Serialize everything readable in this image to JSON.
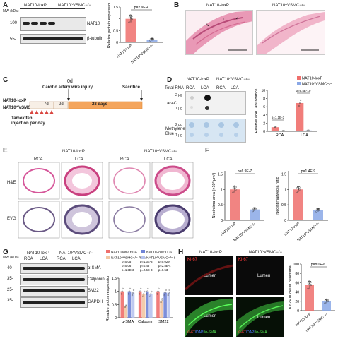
{
  "panels": {
    "A": {
      "label": "A",
      "groups": [
        "NAT10-loxP",
        "NAT10^VSMC−/−"
      ],
      "mw_label": "MW (kDa)",
      "mw": [
        "100-",
        "55-"
      ],
      "bands": [
        "NAT10",
        "β-tubulin"
      ],
      "ylabel": "Relative protein expression",
      "pvalue": "p=2.9E-4",
      "xcats": [
        "NAT10-loxP",
        "NAT10^VSMC−/−"
      ]
    },
    "B": {
      "label": "B",
      "titles": [
        "NAT10-loxP",
        "NAT10^VSMC−/−"
      ]
    },
    "C": {
      "label": "C",
      "rows": [
        "NAT10-loxP",
        "NAT10^VSMC−/−"
      ],
      "timepoints": [
        "-7d",
        "-2d",
        "0d",
        "28 days"
      ],
      "injury": "Carotid artery wire injury",
      "sacrifice": "Sacrifice",
      "tamoxifen": "Tamoxifen\ninjection per day"
    },
    "D": {
      "label": "D",
      "header": "Total RNA",
      "groups": [
        "NAT10-loxP",
        "NAT10^VSMC−/−"
      ],
      "lanes": [
        "RCA",
        "LCA",
        "RCA",
        "LCA"
      ],
      "rows": [
        "ac4C",
        "Methylene Blue"
      ],
      "doses": [
        "2 μg",
        "1 μg",
        "2 μg",
        "1 μg"
      ],
      "ylabel": "Relative ac4C abundance",
      "legend": [
        "NAT10-loxP",
        "NAT10^VSMC−/−"
      ],
      "pvalues": [
        "p=1.1E-3",
        "p=6.4E-10"
      ],
      "xcats": [
        "RCA",
        "LCA"
      ]
    },
    "E": {
      "label": "E",
      "groups": [
        "NAT10-loxP",
        "NAT10^VSMC−/−"
      ],
      "cols": [
        "RCA",
        "LCA",
        "RCA",
        "LCA"
      ],
      "rows": [
        "H&E",
        "EVG"
      ]
    },
    "F": {
      "label": "F",
      "ylabels": [
        "Neointima area (×10³ μm²)",
        "Neointima/Media ratio"
      ],
      "pvalues": [
        "p=6.9E-7",
        "p=1.4E-9"
      ],
      "xcats": [
        "NAT10-loxP",
        "NAT10^VSMC−/−"
      ]
    },
    "G": {
      "label": "G",
      "groups": [
        "NAT10-loxP",
        "NAT10^VSMC−/−"
      ],
      "lanes": [
        "RCA",
        "LCA",
        "RCA",
        "LCA"
      ],
      "mw_label": "MW (kDa)",
      "mw": [
        "40-",
        "35-",
        "25-",
        "35-"
      ],
      "bands": [
        "α-SMA",
        "Calponin",
        "SM22",
        "GAPDH"
      ],
      "ylabel": "Relative protein expression",
      "legend": [
        "NAT10-loxP RCA",
        "NAT10-loxP LCA",
        "NAT10^VSMC−/− RCA",
        "NAT10^VSMC−/− LCA"
      ],
      "xcats": [
        "α-SMA",
        "Calponin",
        "SM22"
      ],
      "pvalues": [
        "p=0.05",
        "p=0.06",
        "p=1.3E-3",
        "p=1.3E-3",
        "p=0.48",
        "p=2.6E-3",
        "p=0.029",
        "p=2.8E-4",
        "p=0.53",
        "p=0.21",
        "p=0.41"
      ]
    },
    "H": {
      "label": "H",
      "titles": [
        "NAT10-loxP",
        "NAT10^VSMC−/−"
      ],
      "lumen": "Lumen",
      "stain_top": "Ki-67",
      "stain_bottom": [
        "Ki-67",
        "/DAPI",
        "/α-SMA"
      ],
      "ylabel": "Ki67+ nuclei in neointima",
      "pvalue": "p=8.0E-6",
      "xcats": [
        "NAT10-loxP",
        "NAT10^VSMC−/−"
      ]
    }
  },
  "chart_data": [
    {
      "panel": "A",
      "type": "bar",
      "categories": [
        "NAT10-loxP",
        "NAT10^VSMC−/−"
      ],
      "values": [
        1.0,
        0.12
      ],
      "errors": [
        0.15,
        0.05
      ],
      "ylim": [
        0,
        1.5
      ],
      "colors": [
        "#ef6f6c",
        "#8aa8e6"
      ]
    },
    {
      "panel": "D",
      "type": "bar",
      "categories": [
        "RCA",
        "LCA"
      ],
      "series": [
        {
          "name": "NAT10-loxP",
          "values": [
            1.0,
            6.9
          ]
        },
        {
          "name": "NAT10^VSMC−/−",
          "values": [
            0.1,
            0.2
          ]
        }
      ],
      "ylim": [
        0,
        10
      ],
      "colors": [
        "#ef6f6c",
        "#8aa8e6"
      ]
    },
    {
      "panel": "F1",
      "type": "bar",
      "categories": [
        "NAT10-loxP",
        "NAT10^VSMC−/−"
      ],
      "values": [
        1.0,
        0.35
      ],
      "errors": [
        0.1,
        0.05
      ],
      "ylim": [
        0,
        1.6
      ],
      "colors": [
        "#ef6f6c",
        "#8aa8e6"
      ]
    },
    {
      "panel": "F2",
      "type": "bar",
      "categories": [
        "NAT10-loxP",
        "NAT10^VSMC−/−"
      ],
      "values": [
        1.0,
        0.33
      ],
      "errors": [
        0.08,
        0.05
      ],
      "ylim": [
        0,
        1.6
      ],
      "colors": [
        "#ef6f6c",
        "#8aa8e6"
      ]
    },
    {
      "panel": "G",
      "type": "bar",
      "categories": [
        "α-SMA",
        "Calponin",
        "SM22"
      ],
      "series": [
        {
          "name": "NAT10-loxP RCA",
          "values": [
            1.0,
            1.0,
            1.0
          ]
        },
        {
          "name": "NAT10-loxP LCA",
          "values": [
            0.45,
            0.9,
            0.65
          ]
        },
        {
          "name": "NAT10^VSMC−/− RCA",
          "values": [
            1.0,
            1.0,
            0.95
          ]
        },
        {
          "name": "NAT10^VSMC−/− LCA",
          "values": [
            0.95,
            0.9,
            0.95
          ]
        }
      ],
      "ylim": [
        0,
        1.5
      ],
      "colors": [
        "#ef6f6c",
        "#f2c7a3",
        "#6f83d6",
        "#b7c3ee"
      ]
    },
    {
      "panel": "H",
      "type": "bar",
      "categories": [
        "NAT10-loxP",
        "NAT10^VSMC−/−"
      ],
      "values": [
        55,
        20
      ],
      "errors": [
        8,
        4
      ],
      "ylim": [
        0,
        100
      ],
      "colors": [
        "#ef6f6c",
        "#8aa8e6"
      ]
    }
  ]
}
